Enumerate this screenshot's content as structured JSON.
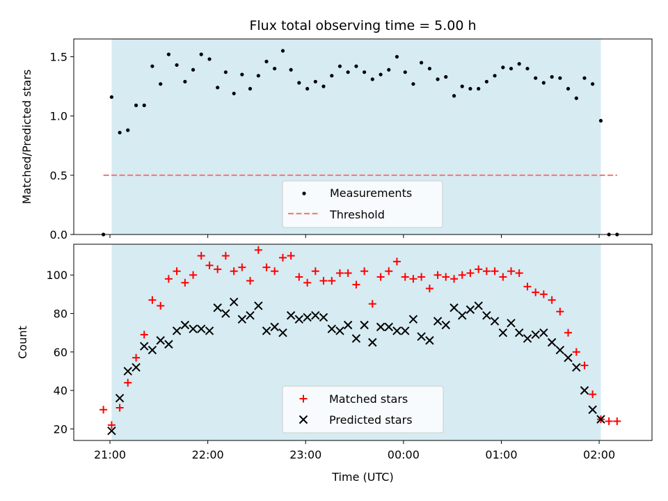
{
  "chart_data": [
    {
      "type": "scatter",
      "title": "Flux total observing time = 5.00 h",
      "xlabel": "",
      "ylabel": "Matched/Predicted stars",
      "xlim": [
        20.63,
        26.54
      ],
      "ylim": [
        0.0,
        1.65
      ],
      "x_tick_values": [
        21,
        22,
        23,
        24,
        25,
        26
      ],
      "y_ticks": [
        "0.0",
        "0.5",
        "1.0",
        "1.5"
      ],
      "y_tick_values": [
        0.0,
        0.5,
        1.0,
        1.5
      ],
      "shaded_region": [
        21.017,
        26.017
      ],
      "shade_color": "#add8e6",
      "legend_position": "lower center",
      "series": [
        {
          "name": "Measurements",
          "marker": "dot",
          "color": "#000000",
          "x": [
            20.933,
            21.017,
            21.1,
            21.183,
            21.267,
            21.35,
            21.433,
            21.517,
            21.6,
            21.683,
            21.767,
            21.85,
            21.933,
            22.017,
            22.1,
            22.183,
            22.267,
            22.35,
            22.433,
            22.517,
            22.6,
            22.683,
            22.767,
            22.85,
            22.933,
            23.017,
            23.1,
            23.183,
            23.267,
            23.35,
            23.433,
            23.517,
            23.6,
            23.683,
            23.767,
            23.85,
            23.933,
            24.017,
            24.1,
            24.183,
            24.267,
            24.35,
            24.433,
            24.517,
            24.6,
            24.683,
            24.767,
            24.85,
            24.933,
            25.017,
            25.1,
            25.183,
            25.267,
            25.35,
            25.433,
            25.517,
            25.6,
            25.683,
            25.767,
            25.85,
            25.933,
            26.017,
            26.1,
            26.183
          ],
          "y": [
            0.0,
            1.16,
            0.86,
            0.88,
            1.09,
            1.09,
            1.42,
            1.27,
            1.52,
            1.43,
            1.29,
            1.39,
            1.52,
            1.48,
            1.24,
            1.37,
            1.19,
            1.35,
            1.23,
            1.34,
            1.46,
            1.4,
            1.55,
            1.39,
            1.28,
            1.23,
            1.29,
            1.25,
            1.34,
            1.42,
            1.37,
            1.42,
            1.37,
            1.31,
            1.35,
            1.39,
            1.5,
            1.37,
            1.27,
            1.45,
            1.4,
            1.31,
            1.33,
            1.17,
            1.25,
            1.23,
            1.23,
            1.29,
            1.34,
            1.41,
            1.4,
            1.44,
            1.4,
            1.32,
            1.28,
            1.33,
            1.32,
            1.23,
            1.15,
            1.32,
            1.27,
            0.96,
            0.0,
            0.0
          ]
        },
        {
          "name": "Threshold",
          "style": "dashed",
          "color": "#f08080",
          "x": [
            20.933,
            26.183
          ],
          "y": [
            0.5,
            0.5
          ]
        }
      ]
    },
    {
      "type": "scatter",
      "title": "",
      "xlabel": "Time (UTC)",
      "ylabel": "Count",
      "xlim": [
        20.63,
        26.54
      ],
      "ylim": [
        14,
        116
      ],
      "x_ticks": [
        "21:00",
        "22:00",
        "23:00",
        "00:00",
        "01:00",
        "02:00"
      ],
      "x_tick_values": [
        21,
        22,
        23,
        24,
        25,
        26
      ],
      "y_ticks": [
        "20",
        "40",
        "60",
        "80",
        "100"
      ],
      "y_tick_values": [
        20,
        40,
        60,
        80,
        100
      ],
      "shaded_region": [
        21.017,
        26.017
      ],
      "shade_color": "#add8e6",
      "legend_position": "lower center",
      "series": [
        {
          "name": "Matched stars",
          "marker": "plus",
          "color": "#ff0000",
          "x": [
            20.933,
            21.017,
            21.1,
            21.183,
            21.267,
            21.35,
            21.433,
            21.517,
            21.6,
            21.683,
            21.767,
            21.85,
            21.933,
            22.017,
            22.1,
            22.183,
            22.267,
            22.35,
            22.433,
            22.517,
            22.6,
            22.683,
            22.767,
            22.85,
            22.933,
            23.017,
            23.1,
            23.183,
            23.267,
            23.35,
            23.433,
            23.517,
            23.6,
            23.683,
            23.767,
            23.85,
            23.933,
            24.017,
            24.1,
            24.183,
            24.267,
            24.35,
            24.433,
            24.517,
            24.6,
            24.683,
            24.767,
            24.85,
            24.933,
            25.017,
            25.1,
            25.183,
            25.267,
            25.35,
            25.433,
            25.517,
            25.6,
            25.683,
            25.767,
            25.85,
            25.933,
            26.017,
            26.1,
            26.183
          ],
          "y": [
            30,
            22,
            31,
            44,
            57,
            69,
            87,
            84,
            98,
            102,
            96,
            100,
            110,
            105,
            103,
            110,
            102,
            104,
            97,
            113,
            104,
            102,
            109,
            110,
            99,
            96,
            102,
            97,
            97,
            101,
            101,
            95,
            102,
            85,
            99,
            102,
            107,
            99,
            98,
            99,
            93,
            100,
            99,
            98,
            100,
            101,
            103,
            102,
            102,
            99,
            102,
            101,
            94,
            91,
            90,
            87,
            81,
            70,
            60,
            53,
            38,
            25,
            24,
            24
          ]
        },
        {
          "name": "Predicted stars",
          "marker": "x",
          "color": "#000000",
          "x": [
            21.017,
            21.1,
            21.183,
            21.267,
            21.35,
            21.433,
            21.517,
            21.6,
            21.683,
            21.767,
            21.85,
            21.933,
            22.017,
            22.1,
            22.183,
            22.267,
            22.35,
            22.433,
            22.517,
            22.6,
            22.683,
            22.767,
            22.85,
            22.933,
            23.017,
            23.1,
            23.183,
            23.267,
            23.35,
            23.433,
            23.517,
            23.6,
            23.683,
            23.767,
            23.85,
            23.933,
            24.017,
            24.1,
            24.183,
            24.267,
            24.35,
            24.433,
            24.517,
            24.6,
            24.683,
            24.767,
            24.85,
            24.933,
            25.017,
            25.1,
            25.183,
            25.267,
            25.35,
            25.433,
            25.517,
            25.6,
            25.683,
            25.767,
            25.85,
            25.933,
            26.017
          ],
          "y": [
            19,
            36,
            50,
            52,
            63,
            61,
            66,
            64,
            71,
            74,
            72,
            72,
            71,
            83,
            80,
            86,
            77,
            79,
            84,
            71,
            73,
            70,
            79,
            77,
            78,
            79,
            78,
            72,
            71,
            74,
            67,
            74,
            65,
            73,
            73,
            71,
            71,
            77,
            68,
            66,
            76,
            74,
            83,
            79,
            82,
            84,
            79,
            76,
            70,
            75,
            70,
            67,
            69,
            70,
            65,
            61,
            57,
            52,
            40,
            30,
            25
          ]
        }
      ]
    }
  ]
}
